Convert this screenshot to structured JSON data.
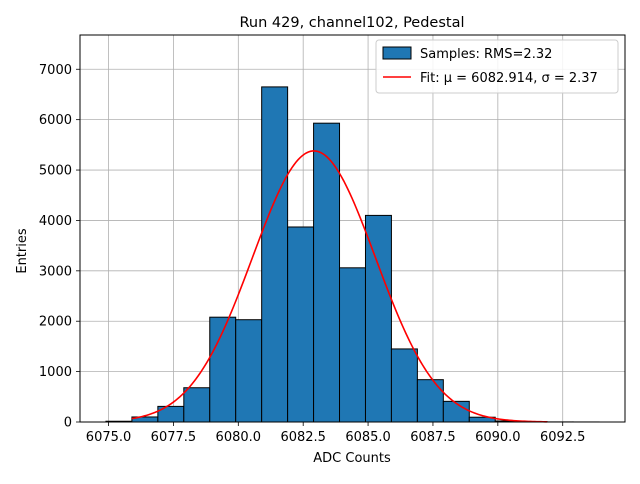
{
  "chart_data": {
    "type": "bar",
    "title": "Run 429, channel102, Pedestal",
    "xlabel": "ADC Counts",
    "ylabel": "Entries",
    "xlim": [
      6073.9,
      6094.9
    ],
    "ylim": [
      0,
      7680
    ],
    "grid": true,
    "legend_position": "top-right",
    "xticks": [
      6075.0,
      6077.5,
      6080.0,
      6082.5,
      6085.0,
      6087.5,
      6090.0,
      6092.5
    ],
    "xtick_labels": [
      "6075.0",
      "6077.5",
      "6080.0",
      "6082.5",
      "6085.0",
      "6087.5",
      "6090.0",
      "6092.5"
    ],
    "yticks": [
      0,
      1000,
      2000,
      3000,
      4000,
      5000,
      6000,
      7000
    ],
    "ytick_labels": [
      "0",
      "1000",
      "2000",
      "3000",
      "4000",
      "5000",
      "6000",
      "7000"
    ],
    "series": [
      {
        "name": "Samples: RMS=2.32",
        "kind": "histogram",
        "color": "#1f77b4",
        "edgecolor": "#000000",
        "bin_edges": [
          6074.9,
          6075.9,
          6076.9,
          6077.9,
          6078.9,
          6079.9,
          6080.9,
          6081.9,
          6082.9,
          6083.9,
          6084.9,
          6085.9,
          6086.9,
          6087.9,
          6088.9,
          6089.9,
          6090.9,
          6091.9,
          6092.9,
          6093.9
        ],
        "values": [
          15,
          100,
          310,
          680,
          2080,
          2030,
          6650,
          3870,
          5930,
          3060,
          4100,
          1450,
          840,
          410,
          95,
          20,
          5,
          2,
          1
        ]
      },
      {
        "name": "Fit: μ = 6082.914, σ = 2.37",
        "kind": "line",
        "color": "#ff0000",
        "mu": 6082.914,
        "sigma": 2.37,
        "amplitude": 5380,
        "x_range": [
          6075.9,
          6091.9
        ]
      }
    ]
  }
}
